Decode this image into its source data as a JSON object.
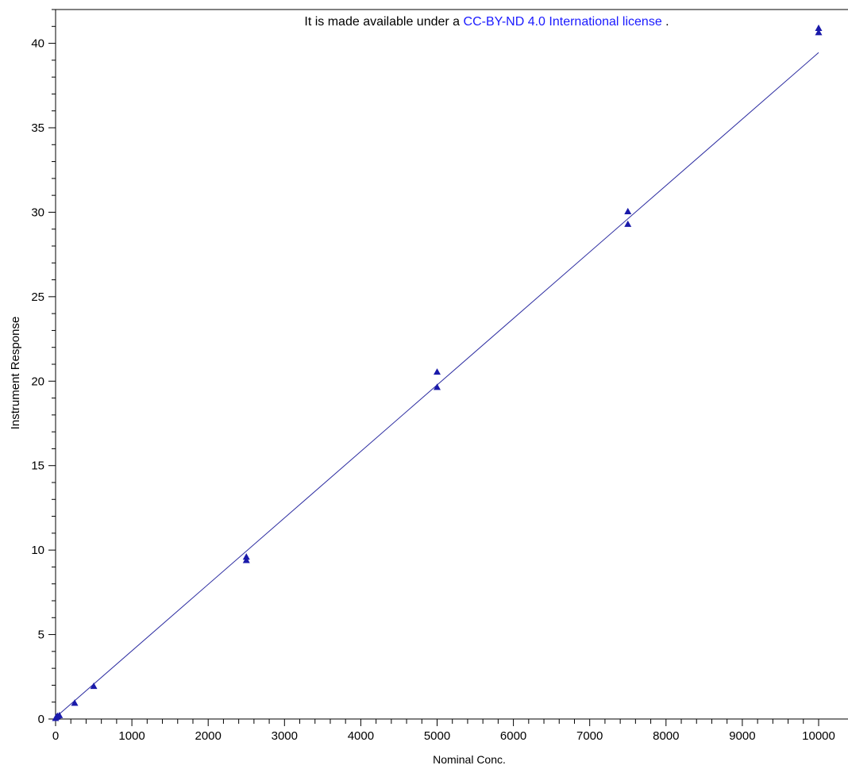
{
  "license_notice": {
    "prefix": "It is made available under a ",
    "link_text": "CC-BY-ND 4.0 International license",
    "suffix": " ."
  },
  "chart_data": {
    "type": "scatter",
    "title": "",
    "xlabel": "Nominal Conc.",
    "ylabel": "Instrument Response",
    "xlim": [
      0,
      10000
    ],
    "ylim": [
      0,
      42
    ],
    "x_ticks": [
      0,
      1000,
      2000,
      3000,
      4000,
      5000,
      6000,
      7000,
      8000,
      9000,
      10000
    ],
    "y_ticks": [
      0,
      5,
      10,
      15,
      20,
      25,
      30,
      35,
      40
    ],
    "grid": false,
    "legend": "none",
    "marker_color": "#1a1aaa",
    "line_color": "#2a2aa0",
    "points": [
      {
        "x": 0,
        "y": 0.05
      },
      {
        "x": 10,
        "y": 0.12
      },
      {
        "x": 25,
        "y": 0.18
      },
      {
        "x": 50,
        "y": 0.22
      },
      {
        "x": 250,
        "y": 0.95
      },
      {
        "x": 500,
        "y": 1.95
      },
      {
        "x": 2500,
        "y": 9.6
      },
      {
        "x": 2500,
        "y": 9.4
      },
      {
        "x": 5000,
        "y": 20.55
      },
      {
        "x": 5000,
        "y": 19.65
      },
      {
        "x": 7500,
        "y": 30.05
      },
      {
        "x": 7500,
        "y": 29.3
      },
      {
        "x": 10000,
        "y": 40.9
      },
      {
        "x": 10000,
        "y": 40.65
      }
    ],
    "fit_line": {
      "x": [
        0,
        10000
      ],
      "y": [
        0.1,
        39.45
      ]
    }
  }
}
